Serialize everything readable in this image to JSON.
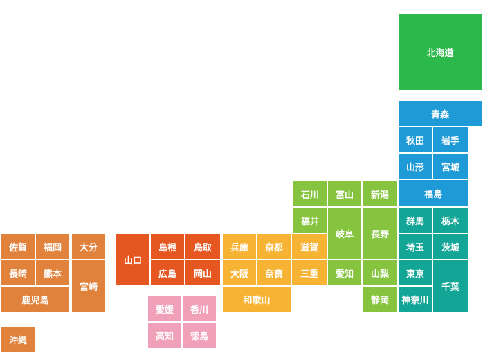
{
  "prefectures": [
    "北海道",
    "青森",
    "秋田",
    "岩手",
    "山形",
    "宮城",
    "福島",
    "群馬",
    "栃木",
    "埼玉",
    "茨城",
    "東京",
    "神奈川",
    "千葉",
    "石川",
    "富山",
    "新潟",
    "福井",
    "岐阜",
    "長野",
    "愛知",
    "山梨",
    "静岡",
    "兵庫",
    "京都",
    "滋賀",
    "大阪",
    "奈良",
    "三重",
    "和歌山",
    "山口",
    "島根",
    "鳥取",
    "広島",
    "岡山",
    "愛媛",
    "香川",
    "高知",
    "徳島",
    "佐賀",
    "福岡",
    "大分",
    "長崎",
    "熊本",
    "宮崎",
    "鹿児島",
    "沖縄"
  ]
}
